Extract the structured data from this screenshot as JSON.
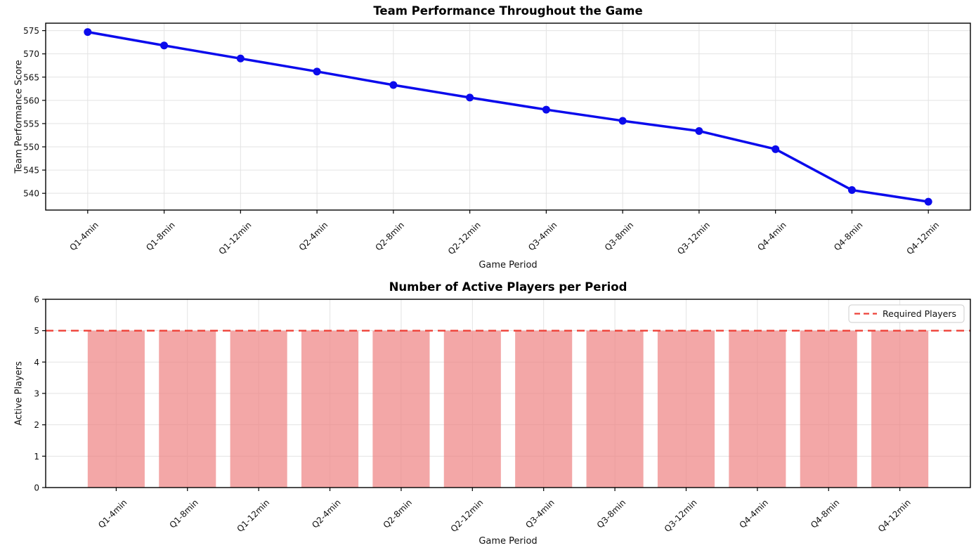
{
  "style": {
    "background": "#ffffff",
    "grid_color": "#e3e3e3",
    "axis_color": "#000000",
    "text_color": "#111111",
    "legend_border_color": "#cccccc"
  },
  "chart_data": [
    {
      "type": "line",
      "title": "Team Performance Throughout the Game",
      "xlabel": "Game Period",
      "ylabel": "Team Performance Score",
      "categories": [
        "Q1-4min",
        "Q1-8min",
        "Q1-12min",
        "Q2-4min",
        "Q2-8min",
        "Q2-12min",
        "Q3-4min",
        "Q3-8min",
        "Q3-12min",
        "Q4-4min",
        "Q4-8min",
        "Q4-12min"
      ],
      "values": [
        574.7,
        571.8,
        569.0,
        566.2,
        563.3,
        560.6,
        558.0,
        555.6,
        553.4,
        549.5,
        540.7,
        538.2
      ],
      "ylim": [
        536.4,
        576.6
      ],
      "yticks": [
        540,
        545,
        550,
        555,
        560,
        565,
        570,
        575
      ],
      "line_color": "#0b0bec",
      "marker": "circle",
      "grid": true,
      "legend_position": "none"
    },
    {
      "type": "bar",
      "title": "Number of Active Players per Period",
      "xlabel": "Game Period",
      "ylabel": "Active Players",
      "categories": [
        "Q1-4min",
        "Q1-8min",
        "Q1-12min",
        "Q2-4min",
        "Q2-8min",
        "Q2-12min",
        "Q3-4min",
        "Q3-8min",
        "Q3-12min",
        "Q4-4min",
        "Q4-8min",
        "Q4-12min"
      ],
      "values": [
        5,
        5,
        5,
        5,
        5,
        5,
        5,
        5,
        5,
        5,
        5,
        5
      ],
      "ylim": [
        0,
        6
      ],
      "yticks": [
        0,
        1,
        2,
        3,
        4,
        5,
        6
      ],
      "bar_color": "#ef8585",
      "bar_alpha": 0.72,
      "ref_line": {
        "y": 5,
        "color": "#ee4037",
        "style": "dashed"
      },
      "legend": {
        "label": "Required Players",
        "position": "upper right"
      },
      "grid": true
    }
  ]
}
